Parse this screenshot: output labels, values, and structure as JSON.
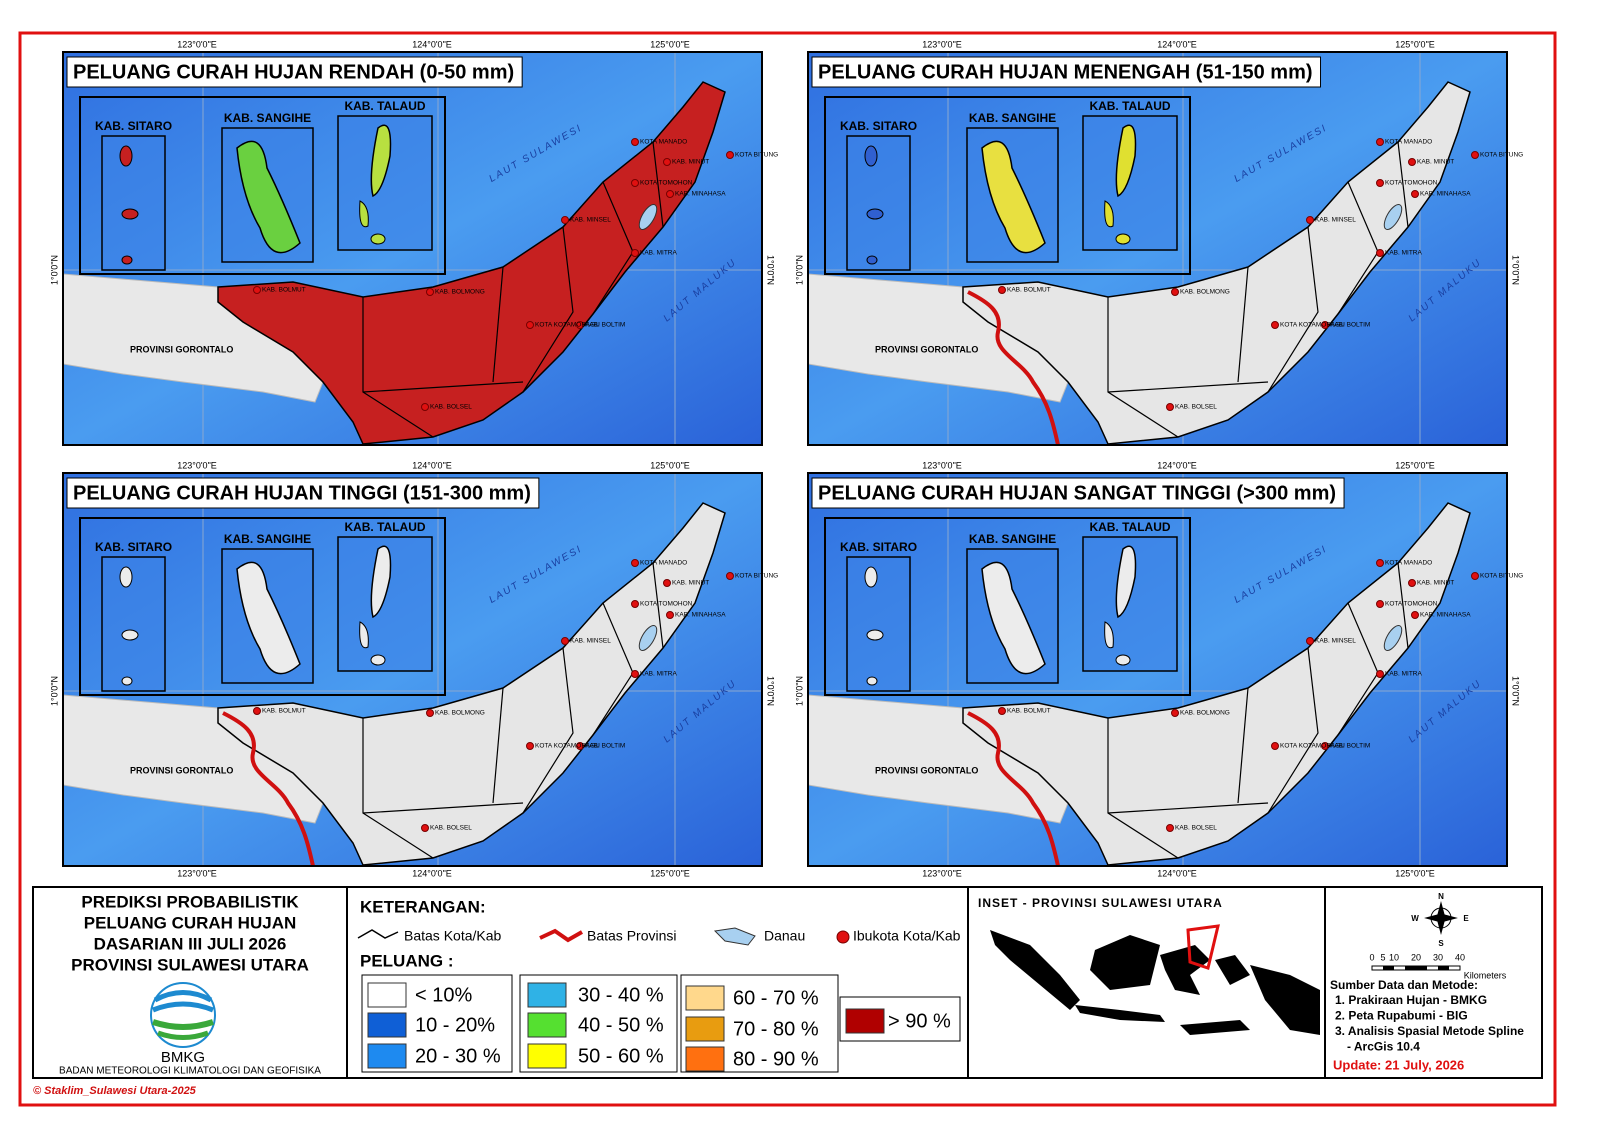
{
  "panels": [
    {
      "title": "PELUANG CURAH HUJAN RENDAH (0-50 mm)",
      "land_color": "#c62020",
      "inset_colors": [
        "#c62020",
        "#6ad040",
        "#b8e040"
      ],
      "province_border": false
    },
    {
      "title": "PELUANG CURAH HUJAN MENENGAH (51-150 mm)",
      "land_color": "#e6e6e6",
      "inset_colors": [
        "#3060d0",
        "#e8e040",
        "#e0e030"
      ],
      "province_border": true
    },
    {
      "title": "PELUANG CURAH HUJAN TINGGI (151-300 mm)",
      "land_color": "#e6e6e6",
      "inset_colors": [
        "#ececec",
        "#ececec",
        "#ececec"
      ],
      "province_border": true
    },
    {
      "title": "PELUANG CURAH HUJAN SANGAT TINGGI (>300 mm)",
      "land_color": "#e6e6e6",
      "inset_colors": [
        "#ececec",
        "#ececec",
        "#ececec"
      ],
      "province_border": true
    }
  ],
  "longitude_labels": [
    "123°0'0\"E",
    "124°0'0\"E",
    "125°0'0\"E"
  ],
  "latitude_label": "1°0'0\"N",
  "insets": [
    "KAB. SITARO",
    "KAB. SANGIHE",
    "KAB. TALAUD"
  ],
  "places": [
    "KOTA MANADO",
    "KAB. MINUT",
    "KOTA BITUNG",
    "KOTA TOMOHON",
    "KAB. MINAHASA",
    "KAB. MINSEL",
    "KAB. MITRA",
    "KAB. BOLMUT",
    "KAB. BOLMONG",
    "KOTA KOTAMOBAGU",
    "KAB. BOLTIM",
    "KAB. BOLSEL",
    "PROVINSI GORONTALO",
    "LAUT SULAWESI",
    "LAUT MALUKU"
  ],
  "footer": {
    "title_lines": [
      "PREDIKSI PROBABILISTIK",
      "PELUANG CURAH HUJAN",
      "DASARIAN III JULI 2026",
      "PROVINSI SULAWESI UTARA"
    ],
    "logo_text": "BMKG",
    "agency": "BADAN METEOROLOGI KLIMATOLOGI DAN GEOFISIKA",
    "copyright": "© Staklim_Sulawesi Utara-2025",
    "legend_title": "KETERANGAN:",
    "symbols": [
      "Batas Kota/Kab",
      "Batas Provinsi",
      "Danau",
      "Ibukota Kota/Kab"
    ],
    "classes_title": "PELUANG :",
    "classes": [
      {
        "label": "< 10%",
        "color": "#ffffff"
      },
      {
        "label": "10 - 20%",
        "color": "#0f5fd6"
      },
      {
        "label": "20 - 30 %",
        "color": "#1e8af0"
      },
      {
        "label": "30 - 40 %",
        "color": "#2fb2e6"
      },
      {
        "label": "40 - 50 %",
        "color": "#55e030"
      },
      {
        "label": "50 - 60 %",
        "color": "#ffff00"
      },
      {
        "label": "60 - 70 %",
        "color": "#ffd88c"
      },
      {
        "label": "70 - 80 %",
        "color": "#e89c10"
      },
      {
        "label": "80 - 90 %",
        "color": "#ff7010"
      },
      {
        "label": "> 90 %",
        "color": "#b00000"
      }
    ],
    "inset_title": "INSET - PROVINSI SULAWESI UTARA",
    "compass": [
      "N",
      "E",
      "S",
      "W"
    ],
    "scale_labels": [
      "0",
      "5",
      "10",
      "20",
      "30",
      "40",
      "Kilometers"
    ],
    "sources_title": "Sumber Data dan Metode:",
    "sources": [
      "1. Prakiraan Hujan - BMKG",
      "2. Peta Rupabumi - BIG",
      "3. Analisis Spasial Metode Spline",
      "- ArcGis 10.4"
    ],
    "update": "Update: 21 July, 2026"
  }
}
